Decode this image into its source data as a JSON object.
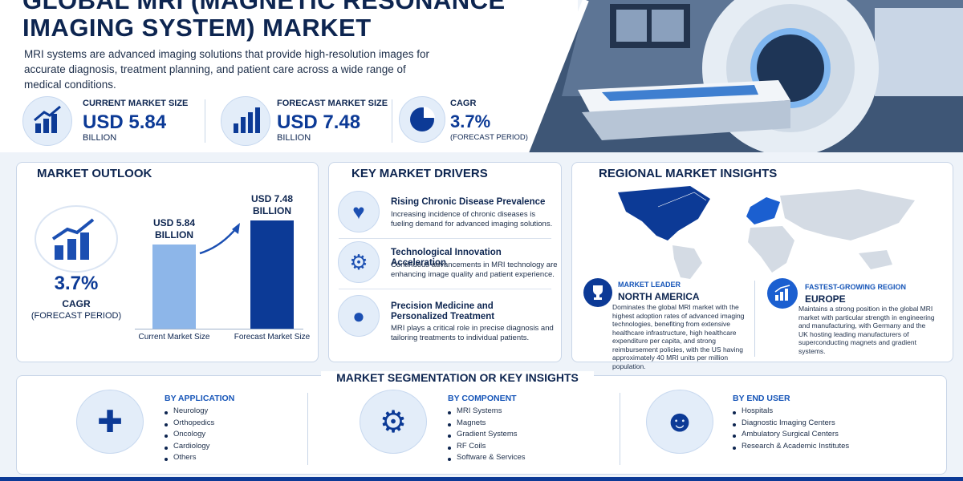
{
  "header": {
    "title_lines": [
      "GLOBAL MRI (MAGNETIC RESONANCE",
      "IMAGING SYSTEM) MARKET"
    ],
    "description": "MRI systems are advanced imaging solutions that provide high-resolution images for accurate diagnosis, treatment planning, and patient care across a wide range of medical conditions."
  },
  "stats": [
    {
      "label": "CURRENT MARKET SIZE",
      "value": "USD 5.84",
      "unit": "BILLION"
    },
    {
      "label": "FORECAST MARKET SIZE",
      "value": "USD 7.48",
      "unit": "BILLION"
    },
    {
      "label": "CAGR",
      "value": "3.7%",
      "unit": "(FORECAST PERIOD)"
    }
  ],
  "outlook": {
    "title": "MARKET OUTLOOK",
    "cagr_value": "3.7%",
    "cagr_label": "CAGR",
    "cagr_note": "(FORECAST PERIOD)",
    "chart": {
      "type": "bar",
      "categories": [
        "Current Market Size",
        "Forecast Market Size"
      ],
      "values": [
        5.84,
        7.48
      ],
      "value_labels": [
        "USD 5.84 BILLION",
        "USD 7.48 BILLION"
      ],
      "colors": [
        "#8db6e9",
        "#0c3a96"
      ]
    }
  },
  "drivers": {
    "title": "KEY MARKET DRIVERS",
    "items": [
      {
        "title": "Rising Chronic Disease Prevalence",
        "text": "Increasing incidence of chronic diseases is fueling demand for advanced imaging solutions."
      },
      {
        "title": "Technological Innovation Acceleration",
        "text": "Continuous advancements in MRI technology are enhancing image quality and patient experience."
      },
      {
        "title": "Precision Medicine and Personalized Treatment",
        "text": "MRI plays a critical role in precise diagnosis and tailoring treatments to individual patients."
      }
    ]
  },
  "regional": {
    "title": "REGIONAL MARKET INSIGHTS",
    "leader": {
      "tag": "MARKET LEADER",
      "region": "NORTH AMERICA",
      "text": "Dominates the global MRI market with the highest adoption rates of advanced imaging technologies, benefiting from extensive healthcare infrastructure, high healthcare expenditure per capita, and strong reimbursement policies, with the US having approximately 40 MRI units per million population."
    },
    "fastest": {
      "tag": "FASTEST-GROWING REGION",
      "region": "EUROPE",
      "text": "Maintains a strong position in the global MRI market with particular strength in engineering and manufacturing, with Germany and the UK hosting leading manufacturers of superconducting magnets and gradient systems."
    }
  },
  "segmentation": {
    "title": "MARKET SEGMENTATION OR KEY INSIGHTS",
    "groups": [
      {
        "title": "BY APPLICATION",
        "items": [
          "Neurology",
          "Orthopedics",
          "Oncology",
          "Cardiology",
          "Others"
        ]
      },
      {
        "title": "BY COMPONENT",
        "items": [
          "MRI Systems",
          "Magnets",
          "Gradient Systems",
          "RF Coils",
          "Software & Services"
        ]
      },
      {
        "title": "BY END USER",
        "items": [
          "Hospitals",
          "Diagnostic Imaging Centers",
          "Ambulatory Surgical Centers",
          "Research & Academic Institutes"
        ]
      }
    ]
  }
}
